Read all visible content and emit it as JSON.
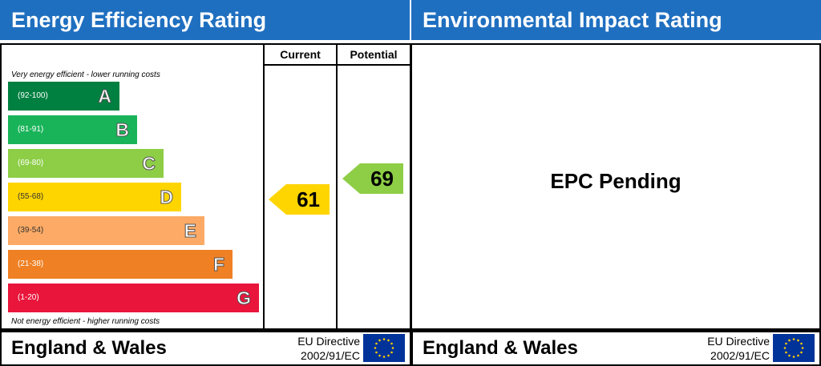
{
  "energy": {
    "title": "Energy Efficiency Rating",
    "col_current": "Current",
    "col_potential": "Potential",
    "top_note": "Very energy efficient - lower running costs",
    "bottom_note": "Not energy efficient - higher running costs",
    "bands": [
      {
        "letter": "A",
        "range": "(92-100)",
        "color": "#008040"
      },
      {
        "letter": "B",
        "range": "(81-91)",
        "color": "#19b459"
      },
      {
        "letter": "C",
        "range": "(69-80)",
        "color": "#8dce46"
      },
      {
        "letter": "D",
        "range": "(55-68)",
        "color": "#ffd500"
      },
      {
        "letter": "E",
        "range": "(39-54)",
        "color": "#fcaa65"
      },
      {
        "letter": "F",
        "range": "(21-38)",
        "color": "#ef8023"
      },
      {
        "letter": "G",
        "range": "(1-20)",
        "color": "#e9153b"
      }
    ],
    "current": {
      "value": "61",
      "band": "D"
    },
    "potential": {
      "value": "69",
      "band": "C"
    }
  },
  "environmental": {
    "title": "Environmental Impact Rating",
    "status": "EPC Pending"
  },
  "footer": {
    "region": "England & Wales",
    "directive_line1": "EU Directive",
    "directive_line2": "2002/91/EC"
  },
  "colors": {
    "header": "#1f6fc0",
    "flag_blue": "#003399",
    "flag_star": "#ffcc00"
  }
}
